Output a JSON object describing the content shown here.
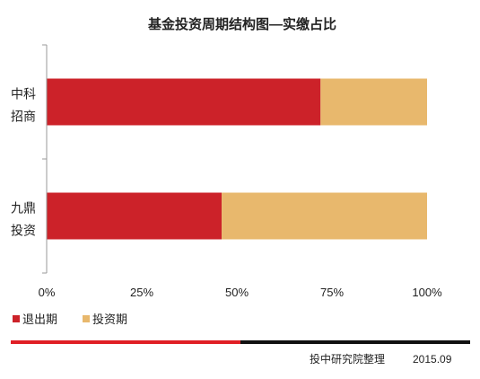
{
  "chart_data": {
    "type": "bar",
    "orientation": "horizontal",
    "stacked": "percent",
    "title": "基金投资周期结构图—实缴占比",
    "categories": [
      [
        "中科",
        "招商"
      ],
      [
        "九鼎",
        "投资"
      ]
    ],
    "series": [
      {
        "name": "退出期",
        "color": "#cc2229",
        "values": [
          72,
          46
        ]
      },
      {
        "name": "投资期",
        "color": "#e8b86d",
        "values": [
          28,
          54
        ]
      }
    ],
    "xlim": [
      0,
      100
    ],
    "xticks": [
      "0%",
      "25%",
      "50%",
      "75%",
      "100%"
    ],
    "legend_position": "bottom-left",
    "grid": false
  },
  "footer": {
    "source": "投中研究院整理",
    "date": "2015.09",
    "accent_color": "#e01e25",
    "line_color": "#111111"
  }
}
